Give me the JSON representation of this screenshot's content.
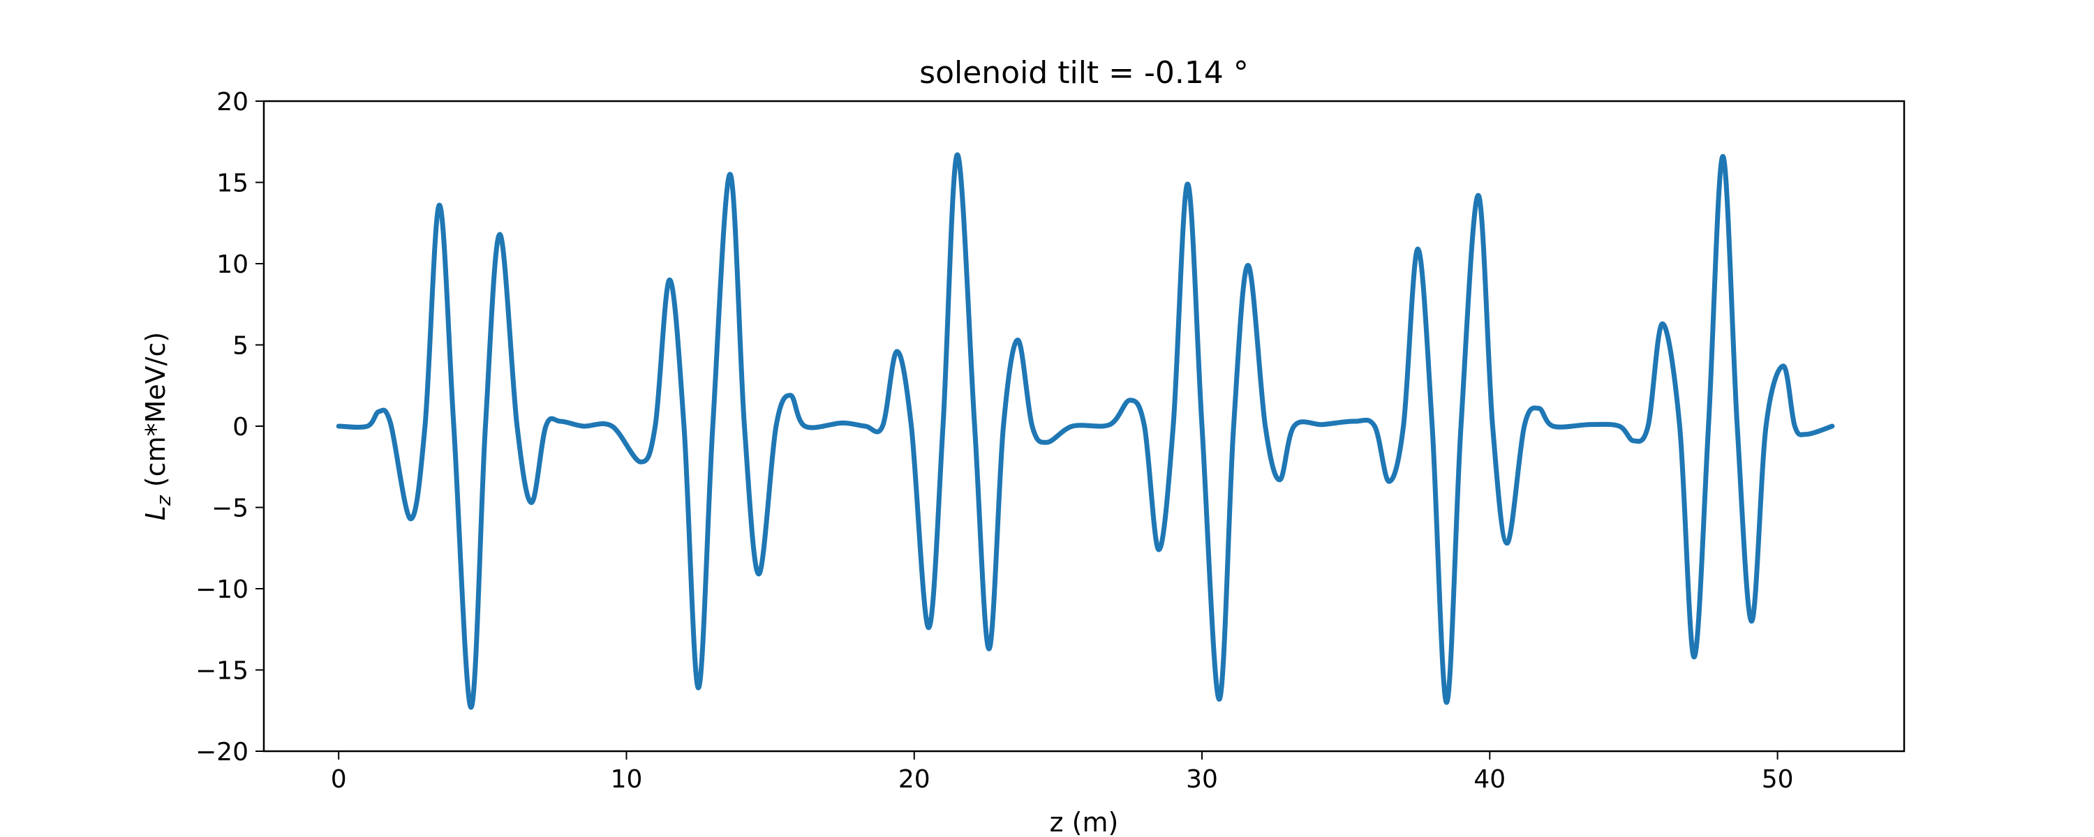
{
  "chart_data": {
    "type": "line",
    "title": "solenoid tilt = -0.14 °",
    "xlabel": "z (m)",
    "ylabel_main": "L",
    "ylabel_sub": "z",
    "ylabel_rest": " (cm*MeV/c)",
    "xlim": [
      -2.6,
      54.4
    ],
    "ylim": [
      -20,
      20
    ],
    "xticks": [
      0,
      10,
      20,
      30,
      40,
      50
    ],
    "yticks": [
      -20,
      -15,
      -10,
      -5,
      0,
      5,
      10,
      15,
      20
    ],
    "xtick_labels": [
      "0",
      "10",
      "20",
      "30",
      "40",
      "50"
    ],
    "ytick_labels": [
      "−20",
      "−15",
      "−10",
      "−5",
      "0",
      "5",
      "10",
      "15",
      "20"
    ],
    "grid": false,
    "color": "#1f77b4",
    "series": [
      {
        "x": [
          0.0,
          1.0,
          1.4,
          1.8,
          2.5,
          3.0,
          3.5,
          4.0,
          4.6,
          5.1,
          5.6,
          6.2,
          6.7,
          7.2,
          7.7,
          8.5,
          9.5,
          10.5,
          11.0,
          11.5,
          12.0,
          12.5,
          13.0,
          13.6,
          14.1,
          14.6,
          15.2,
          15.7,
          16.2,
          17.5,
          18.3,
          18.9,
          19.4,
          19.9,
          20.5,
          21.0,
          21.5,
          22.1,
          22.6,
          23.1,
          23.6,
          24.1,
          24.6,
          25.5,
          26.8,
          27.5,
          28.0,
          28.5,
          29.0,
          29.5,
          30.0,
          30.6,
          31.1,
          31.6,
          32.2,
          32.7,
          33.2,
          34.2,
          35.3,
          36.0,
          36.5,
          37.0,
          37.5,
          38.0,
          38.5,
          39.0,
          39.6,
          40.1,
          40.6,
          41.2,
          41.7,
          42.2,
          43.5,
          44.5,
          45.0,
          45.5,
          46.0,
          46.6,
          47.1,
          47.6,
          48.1,
          48.6,
          49.1,
          49.6,
          50.2,
          50.6,
          51.0,
          51.9
        ],
        "y": [
          0.0,
          0.0,
          0.9,
          0.2,
          -5.7,
          0.0,
          13.6,
          0.0,
          -17.3,
          0.0,
          11.8,
          0.0,
          -4.7,
          0.0,
          0.3,
          0.0,
          0.0,
          -2.2,
          0.0,
          9.0,
          0.0,
          -16.1,
          0.0,
          15.5,
          0.0,
          -9.1,
          0.0,
          1.9,
          0.0,
          0.2,
          0.0,
          0.0,
          4.6,
          0.0,
          -12.4,
          0.0,
          16.7,
          0.0,
          -13.7,
          0.0,
          5.3,
          0.0,
          -1.0,
          0.0,
          0.1,
          1.6,
          0.0,
          -7.6,
          0.0,
          14.9,
          0.0,
          -16.8,
          0.0,
          9.9,
          0.0,
          -3.3,
          0.0,
          0.1,
          0.3,
          0.0,
          -3.4,
          0.0,
          10.9,
          0.0,
          -17.0,
          0.0,
          14.2,
          0.0,
          -7.2,
          0.0,
          1.1,
          0.0,
          0.1,
          0.0,
          -0.9,
          0.0,
          6.3,
          0.0,
          -14.2,
          0.0,
          16.6,
          0.0,
          -12.0,
          0.0,
          3.7,
          0.0,
          -0.5,
          0.0
        ]
      }
    ]
  }
}
